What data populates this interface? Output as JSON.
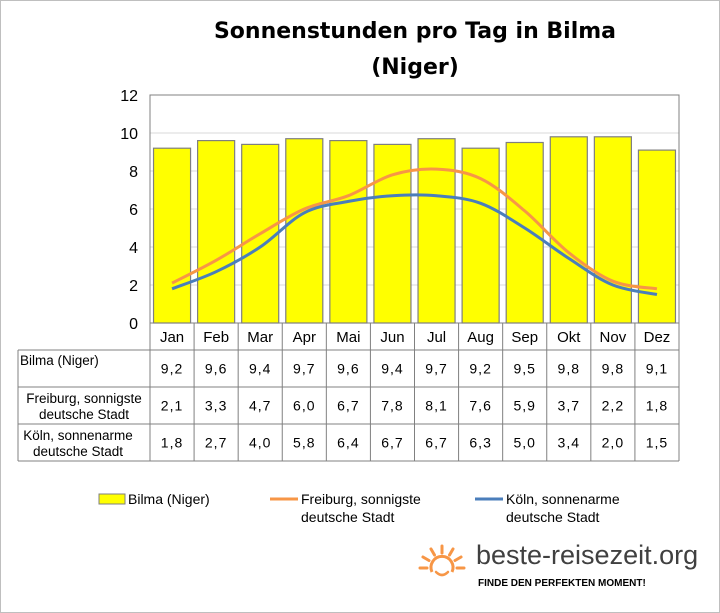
{
  "chart_data": {
    "type": "bar",
    "title": "Sonnenstunden pro Tag in Bilma\n(Niger)",
    "categories": [
      "Jan",
      "Feb",
      "Mar",
      "Apr",
      "Mai",
      "Jun",
      "Jul",
      "Aug",
      "Sep",
      "Okt",
      "Nov",
      "Dez"
    ],
    "ylim": [
      0,
      12
    ],
    "yticks": [
      "0",
      "2",
      "4",
      "6",
      "8",
      "10",
      "12"
    ],
    "ytick_values": [
      0,
      2,
      4,
      6,
      8,
      10,
      12
    ],
    "grid": true,
    "legend_position": "bottom",
    "series": [
      {
        "name": "Bilma (Niger)",
        "type": "bar",
        "color": "#ffff00",
        "values": [
          9.2,
          9.6,
          9.4,
          9.7,
          9.6,
          9.4,
          9.7,
          9.2,
          9.5,
          9.8,
          9.8,
          9.1
        ],
        "labels": [
          "9,2",
          "9,6",
          "9,4",
          "9,7",
          "9,6",
          "9,4",
          "9,7",
          "9,2",
          "9,5",
          "9,8",
          "9,8",
          "9,1"
        ]
      },
      {
        "name": "Freiburg, sonnigste deutsche Stadt",
        "type": "line",
        "color": "#f79646",
        "values": [
          2.1,
          3.3,
          4.7,
          6.0,
          6.7,
          7.8,
          8.1,
          7.6,
          5.9,
          3.7,
          2.2,
          1.8
        ],
        "labels": [
          "2,1",
          "3,3",
          "4,7",
          "6,0",
          "6,7",
          "7,8",
          "8,1",
          "7,6",
          "5,9",
          "3,7",
          "2,2",
          "1,8"
        ]
      },
      {
        "name": "Köln, sonnenarme deutsche Stadt",
        "type": "line",
        "color": "#4a7ebb",
        "values": [
          1.8,
          2.7,
          4.0,
          5.8,
          6.4,
          6.7,
          6.7,
          6.3,
          5.0,
          3.4,
          2.0,
          1.5
        ],
        "labels": [
          "1,8",
          "2,7",
          "4,0",
          "5,8",
          "6,4",
          "6,7",
          "6,7",
          "6,3",
          "5,0",
          "3,4",
          "2,0",
          "1,5"
        ]
      }
    ],
    "table_row_headers": [
      [
        "Bilma (Niger)"
      ],
      [
        "Freiburg, sonnigste",
        "deutsche Stadt"
      ],
      [
        "Köln, sonnenarme",
        "deutsche Stadt"
      ]
    ],
    "legend_entries": [
      [
        "Bilma (Niger)"
      ],
      [
        "Freiburg, sonnigste",
        "deutsche Stadt"
      ],
      [
        "Köln, sonnenarme",
        "deutsche Stadt"
      ]
    ]
  },
  "branding": {
    "name": "beste-reisezeit.org",
    "slogan": "FINDE DEN PERFEKTEN MOMENT!",
    "sun_color": "#f79646",
    "text_color": "#404040"
  }
}
